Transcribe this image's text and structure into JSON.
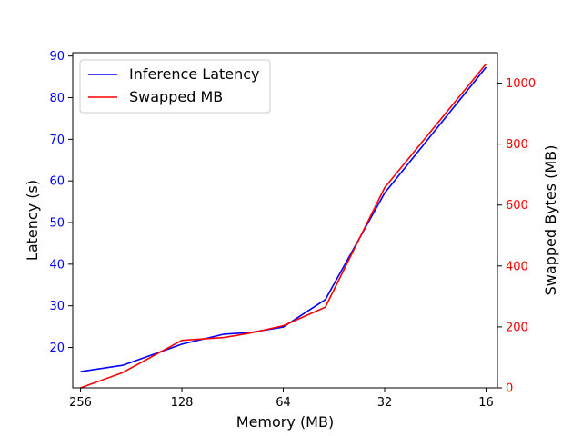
{
  "chart_data": {
    "type": "line",
    "x_axis": {
      "label": "Memory (MB)",
      "ticks": [
        "256",
        "128",
        "64",
        "32",
        "16"
      ],
      "tick_positions": [
        256,
        128,
        64,
        32,
        16
      ],
      "scale": "log2-reversed",
      "lim": [
        270,
        14.8
      ]
    },
    "y_left": {
      "label": "Latency (s)",
      "ticks": [
        "20",
        "30",
        "40",
        "50",
        "60",
        "70",
        "80",
        "90"
      ],
      "tick_values": [
        20,
        30,
        40,
        50,
        60,
        70,
        80,
        90
      ],
      "lim": [
        10.3,
        90.8
      ],
      "color": "#0000ff"
    },
    "y_right": {
      "label": "Swapped Bytes (MB)",
      "ticks": [
        "0",
        "200",
        "400",
        "600",
        "800",
        "1000"
      ],
      "tick_values": [
        0,
        200,
        400,
        600,
        800,
        1000
      ],
      "lim": [
        0,
        1100
      ],
      "color": "#ff0000"
    },
    "series": [
      {
        "name": "Inference Latency",
        "axis": "left",
        "color": "#0000ff",
        "x": [
          256,
          192,
          128,
          96,
          80,
          64,
          48,
          32,
          16
        ],
        "y": [
          14.2,
          15.7,
          20.8,
          23.2,
          23.6,
          24.9,
          31.5,
          57.1,
          87.3
        ]
      },
      {
        "name": "Swapped MB",
        "axis": "right",
        "color": "#ff0000",
        "x": [
          256,
          192,
          128,
          96,
          80,
          64,
          48,
          32,
          16
        ],
        "y": [
          0,
          50,
          156,
          165,
          180,
          204,
          265,
          657,
          1063
        ]
      }
    ],
    "legend": {
      "position": "top-left",
      "entries": [
        "Inference Latency",
        "Swapped MB"
      ]
    },
    "grid": false
  }
}
